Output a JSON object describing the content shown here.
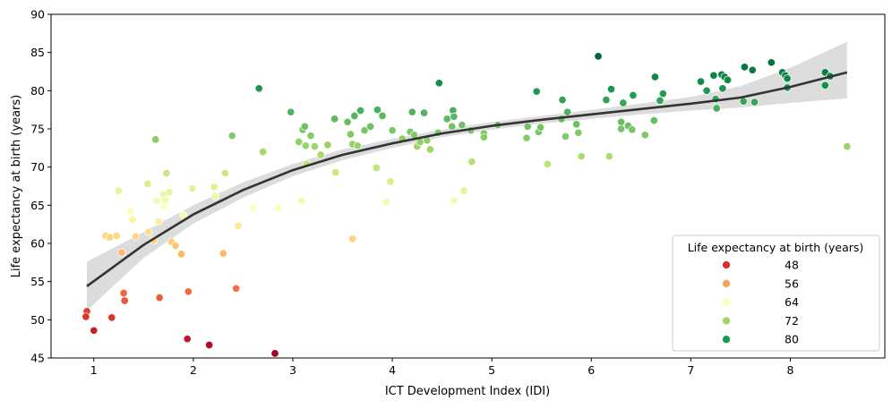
{
  "chart_data": {
    "type": "scatter",
    "xlabel": "ICT Development Index (IDI)",
    "ylabel": "Life expectancy at birth (years)",
    "xlim": [
      0.57,
      8.95
    ],
    "ylim": [
      45,
      90
    ],
    "xticks": [
      1,
      2,
      3,
      4,
      5,
      6,
      7,
      8
    ],
    "yticks": [
      45,
      50,
      55,
      60,
      65,
      70,
      75,
      80,
      85,
      90
    ],
    "grid": false,
    "legend": {
      "title": "Life expectancy at birth (years)",
      "placement": "lower-right",
      "entries": [
        {
          "label": "48",
          "color": "#d73027"
        },
        {
          "label": "56",
          "color": "#f4a25c"
        },
        {
          "label": "64",
          "color": "#fdfebc"
        },
        {
          "label": "72",
          "color": "#a4d46a"
        },
        {
          "label": "80",
          "color": "#1a9850"
        }
      ]
    },
    "color_scale": {
      "palette": "RdYlGn",
      "stops": [
        {
          "value": 45.6,
          "color": "#a50026"
        },
        {
          "value": 50,
          "color": "#d73027"
        },
        {
          "value": 54,
          "color": "#f46d43"
        },
        {
          "value": 58,
          "color": "#fdae61"
        },
        {
          "value": 61.5,
          "color": "#fee08b"
        },
        {
          "value": 64.5,
          "color": "#ffffbf"
        },
        {
          "value": 68,
          "color": "#d9ef8b"
        },
        {
          "value": 72,
          "color": "#a6d96a"
        },
        {
          "value": 76,
          "color": "#66bd63"
        },
        {
          "value": 80,
          "color": "#1a9850"
        },
        {
          "value": 84.5,
          "color": "#006837"
        }
      ]
    },
    "regression": {
      "line_color": "#333333",
      "band_color": "#dcdcdc",
      "curve": [
        [
          0.93,
          54.4
        ],
        [
          1.5,
          59.8
        ],
        [
          2.0,
          63.8
        ],
        [
          2.5,
          67.0
        ],
        [
          3.0,
          69.6
        ],
        [
          3.5,
          71.6
        ],
        [
          4.0,
          73.1
        ],
        [
          4.5,
          74.4
        ],
        [
          5.0,
          75.4
        ],
        [
          5.5,
          76.2
        ],
        [
          6.0,
          76.9
        ],
        [
          6.5,
          77.6
        ],
        [
          7.0,
          78.3
        ],
        [
          7.5,
          79.1
        ],
        [
          8.0,
          80.5
        ],
        [
          8.57,
          82.4
        ]
      ],
      "band_upper": [
        [
          0.93,
          57.6
        ],
        [
          1.5,
          61.5
        ],
        [
          2.0,
          65.0
        ],
        [
          2.5,
          68.0
        ],
        [
          3.0,
          70.4
        ],
        [
          3.5,
          72.3
        ],
        [
          4.0,
          73.7
        ],
        [
          4.5,
          74.9
        ],
        [
          5.0,
          75.9
        ],
        [
          5.5,
          76.7
        ],
        [
          6.0,
          77.5
        ],
        [
          6.5,
          78.3
        ],
        [
          7.0,
          79.2
        ],
        [
          7.5,
          80.6
        ],
        [
          8.0,
          83.0
        ],
        [
          8.57,
          86.4
        ]
      ],
      "band_lower": [
        [
          0.93,
          51.2
        ],
        [
          1.5,
          58.1
        ],
        [
          2.0,
          62.6
        ],
        [
          2.5,
          66.0
        ],
        [
          3.0,
          68.8
        ],
        [
          3.5,
          70.9
        ],
        [
          4.0,
          72.5
        ],
        [
          4.5,
          73.9
        ],
        [
          5.0,
          74.9
        ],
        [
          5.5,
          75.7
        ],
        [
          6.0,
          76.3
        ],
        [
          6.5,
          76.9
        ],
        [
          7.0,
          77.4
        ],
        [
          7.5,
          77.8
        ],
        [
          8.0,
          78.4
        ],
        [
          8.57,
          79.0
        ]
      ]
    },
    "points": [
      {
        "x": 0.93,
        "y": 51.1
      },
      {
        "x": 0.92,
        "y": 50.4
      },
      {
        "x": 1.0,
        "y": 48.6
      },
      {
        "x": 1.18,
        "y": 50.3
      },
      {
        "x": 1.3,
        "y": 53.5
      },
      {
        "x": 1.31,
        "y": 52.5
      },
      {
        "x": 1.28,
        "y": 58.8
      },
      {
        "x": 1.12,
        "y": 61.0
      },
      {
        "x": 1.16,
        "y": 60.8
      },
      {
        "x": 1.23,
        "y": 61.0
      },
      {
        "x": 1.25,
        "y": 66.9
      },
      {
        "x": 1.37,
        "y": 64.2
      },
      {
        "x": 1.39,
        "y": 63.1
      },
      {
        "x": 1.42,
        "y": 60.9
      },
      {
        "x": 1.55,
        "y": 61.5
      },
      {
        "x": 1.6,
        "y": 60.4
      },
      {
        "x": 1.54,
        "y": 67.8
      },
      {
        "x": 1.63,
        "y": 65.6
      },
      {
        "x": 1.65,
        "y": 62.9
      },
      {
        "x": 1.66,
        "y": 52.9
      },
      {
        "x": 1.62,
        "y": 73.6
      },
      {
        "x": 1.7,
        "y": 64.8
      },
      {
        "x": 1.7,
        "y": 66.4
      },
      {
        "x": 1.72,
        "y": 65.7
      },
      {
        "x": 1.73,
        "y": 69.2
      },
      {
        "x": 1.76,
        "y": 66.7
      },
      {
        "x": 1.78,
        "y": 60.2
      },
      {
        "x": 1.82,
        "y": 59.7
      },
      {
        "x": 1.88,
        "y": 58.6
      },
      {
        "x": 1.9,
        "y": 63.7
      },
      {
        "x": 1.94,
        "y": 47.5
      },
      {
        "x": 1.95,
        "y": 53.7
      },
      {
        "x": 1.99,
        "y": 67.2
      },
      {
        "x": 2.16,
        "y": 46.7
      },
      {
        "x": 2.21,
        "y": 67.4
      },
      {
        "x": 2.22,
        "y": 66.2
      },
      {
        "x": 2.3,
        "y": 58.7
      },
      {
        "x": 2.32,
        "y": 69.2
      },
      {
        "x": 2.39,
        "y": 74.1
      },
      {
        "x": 2.43,
        "y": 54.1
      },
      {
        "x": 2.45,
        "y": 62.3
      },
      {
        "x": 2.6,
        "y": 64.6
      },
      {
        "x": 2.66,
        "y": 80.3
      },
      {
        "x": 2.7,
        "y": 72.0
      },
      {
        "x": 2.82,
        "y": 45.6
      },
      {
        "x": 2.85,
        "y": 64.6
      },
      {
        "x": 2.98,
        "y": 77.2
      },
      {
        "x": 3.06,
        "y": 73.3
      },
      {
        "x": 3.09,
        "y": 65.6
      },
      {
        "x": 3.1,
        "y": 74.9
      },
      {
        "x": 3.12,
        "y": 75.3
      },
      {
        "x": 3.13,
        "y": 72.8
      },
      {
        "x": 3.14,
        "y": 70.4
      },
      {
        "x": 3.18,
        "y": 74.1
      },
      {
        "x": 3.22,
        "y": 72.7
      },
      {
        "x": 3.28,
        "y": 71.6
      },
      {
        "x": 3.35,
        "y": 72.9
      },
      {
        "x": 3.42,
        "y": 76.3
      },
      {
        "x": 3.43,
        "y": 69.3
      },
      {
        "x": 3.55,
        "y": 75.9
      },
      {
        "x": 3.58,
        "y": 74.3
      },
      {
        "x": 3.6,
        "y": 73.0
      },
      {
        "x": 3.6,
        "y": 60.6
      },
      {
        "x": 3.62,
        "y": 76.7
      },
      {
        "x": 3.65,
        "y": 72.8
      },
      {
        "x": 3.68,
        "y": 77.4
      },
      {
        "x": 3.72,
        "y": 74.8
      },
      {
        "x": 3.78,
        "y": 75.3
      },
      {
        "x": 3.84,
        "y": 69.9
      },
      {
        "x": 3.85,
        "y": 77.5
      },
      {
        "x": 3.9,
        "y": 76.7
      },
      {
        "x": 3.94,
        "y": 65.4
      },
      {
        "x": 3.98,
        "y": 68.1
      },
      {
        "x": 4.0,
        "y": 74.8
      },
      {
        "x": 4.1,
        "y": 73.7
      },
      {
        "x": 4.18,
        "y": 74.6
      },
      {
        "x": 4.2,
        "y": 77.2
      },
      {
        "x": 4.22,
        "y": 74.2
      },
      {
        "x": 4.25,
        "y": 72.7
      },
      {
        "x": 4.28,
        "y": 73.3
      },
      {
        "x": 4.32,
        "y": 77.1
      },
      {
        "x": 4.35,
        "y": 73.5
      },
      {
        "x": 4.38,
        "y": 72.3
      },
      {
        "x": 4.46,
        "y": 74.5
      },
      {
        "x": 4.47,
        "y": 81.0
      },
      {
        "x": 4.55,
        "y": 76.3
      },
      {
        "x": 4.6,
        "y": 75.3
      },
      {
        "x": 4.61,
        "y": 77.4
      },
      {
        "x": 4.62,
        "y": 76.6
      },
      {
        "x": 4.62,
        "y": 65.6
      },
      {
        "x": 4.7,
        "y": 75.5
      },
      {
        "x": 4.72,
        "y": 66.9
      },
      {
        "x": 4.79,
        "y": 74.8
      },
      {
        "x": 4.8,
        "y": 70.7
      },
      {
        "x": 4.92,
        "y": 74.4
      },
      {
        "x": 4.92,
        "y": 73.9
      },
      {
        "x": 5.06,
        "y": 75.5
      },
      {
        "x": 5.35,
        "y": 73.8
      },
      {
        "x": 5.36,
        "y": 75.3
      },
      {
        "x": 5.45,
        "y": 79.9
      },
      {
        "x": 5.47,
        "y": 74.6
      },
      {
        "x": 5.49,
        "y": 75.2
      },
      {
        "x": 5.56,
        "y": 70.4
      },
      {
        "x": 5.7,
        "y": 76.3
      },
      {
        "x": 5.71,
        "y": 78.8
      },
      {
        "x": 5.74,
        "y": 74.0
      },
      {
        "x": 5.76,
        "y": 77.2
      },
      {
        "x": 5.85,
        "y": 75.6
      },
      {
        "x": 5.87,
        "y": 74.5
      },
      {
        "x": 5.9,
        "y": 71.4
      },
      {
        "x": 6.07,
        "y": 84.5
      },
      {
        "x": 6.15,
        "y": 78.8
      },
      {
        "x": 6.18,
        "y": 71.4
      },
      {
        "x": 6.2,
        "y": 80.2
      },
      {
        "x": 6.3,
        "y": 75.9
      },
      {
        "x": 6.3,
        "y": 75.0
      },
      {
        "x": 6.32,
        "y": 78.4
      },
      {
        "x": 6.37,
        "y": 75.4
      },
      {
        "x": 6.41,
        "y": 74.9
      },
      {
        "x": 6.42,
        "y": 79.4
      },
      {
        "x": 6.54,
        "y": 74.2
      },
      {
        "x": 6.63,
        "y": 76.1
      },
      {
        "x": 6.64,
        "y": 81.8
      },
      {
        "x": 6.69,
        "y": 78.7
      },
      {
        "x": 6.72,
        "y": 79.6
      },
      {
        "x": 7.1,
        "y": 81.2
      },
      {
        "x": 7.16,
        "y": 80.0
      },
      {
        "x": 7.23,
        "y": 82.0
      },
      {
        "x": 7.25,
        "y": 78.9
      },
      {
        "x": 7.26,
        "y": 77.7
      },
      {
        "x": 7.31,
        "y": 82.1
      },
      {
        "x": 7.32,
        "y": 80.3
      },
      {
        "x": 7.34,
        "y": 81.8
      },
      {
        "x": 7.37,
        "y": 81.4
      },
      {
        "x": 7.53,
        "y": 78.6
      },
      {
        "x": 7.54,
        "y": 83.1
      },
      {
        "x": 7.62,
        "y": 82.7
      },
      {
        "x": 7.64,
        "y": 78.5
      },
      {
        "x": 7.81,
        "y": 83.7
      },
      {
        "x": 7.92,
        "y": 82.4
      },
      {
        "x": 7.95,
        "y": 82.0
      },
      {
        "x": 7.97,
        "y": 81.6
      },
      {
        "x": 7.97,
        "y": 80.4
      },
      {
        "x": 8.35,
        "y": 82.4
      },
      {
        "x": 8.35,
        "y": 80.7
      },
      {
        "x": 8.4,
        "y": 81.9
      },
      {
        "x": 8.57,
        "y": 72.7
      }
    ]
  }
}
